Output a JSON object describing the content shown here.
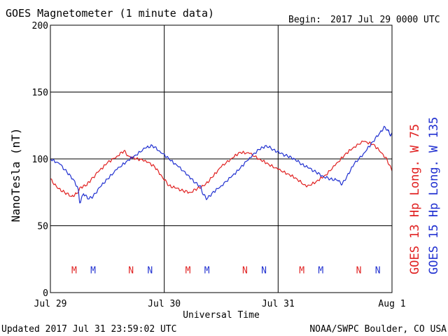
{
  "chart_data": {
    "type": "line",
    "title": "GOES Magnetometer (1 minute data)",
    "begin_label": "Begin:",
    "begin_value": "2017 Jul 29 0000 UTC",
    "xlabel": "Universal Time",
    "ylabel": "NanoTesla (nT)",
    "x_ticks": [
      "Jul 29",
      "Jul 30",
      "Jul 31",
      "Aug 1"
    ],
    "xlim_hours": [
      0,
      72
    ],
    "ylim": [
      0,
      200
    ],
    "y_ticks": [
      0,
      50,
      100,
      150,
      200
    ],
    "grid": true,
    "updated": "Updated 2017 Jul 31 23:59:02 UTC",
    "source": "NOAA/SWPC Boulder, CO USA",
    "colors": {
      "goes13": "#e02020",
      "goes15": "#2030d0"
    },
    "series": [
      {
        "name": "GOES 13 Hp",
        "legend_suffix": "Long. W 75",
        "color": "#e02020",
        "points": [
          [
            0,
            85
          ],
          [
            1.5,
            78
          ],
          [
            3,
            75
          ],
          [
            4.5,
            72
          ],
          [
            5.5,
            74
          ],
          [
            6.5,
            79
          ],
          [
            7.5,
            80
          ],
          [
            8.5,
            84
          ],
          [
            10,
            90
          ],
          [
            12,
            97
          ],
          [
            14,
            102
          ],
          [
            15.5,
            106
          ],
          [
            16.5,
            102
          ],
          [
            18,
            100
          ],
          [
            20,
            99
          ],
          [
            22,
            94
          ],
          [
            23.5,
            87
          ],
          [
            25,
            80
          ],
          [
            26.5,
            78
          ],
          [
            28,
            76
          ],
          [
            29.5,
            75
          ],
          [
            31,
            78
          ],
          [
            32.5,
            80
          ],
          [
            34,
            86
          ],
          [
            36,
            94
          ],
          [
            38,
            100
          ],
          [
            40,
            105
          ],
          [
            42,
            104
          ],
          [
            44,
            100
          ],
          [
            46,
            96
          ],
          [
            48,
            92
          ],
          [
            50,
            89
          ],
          [
            52,
            85
          ],
          [
            54,
            79
          ],
          [
            56,
            83
          ],
          [
            58,
            88
          ],
          [
            60,
            95
          ],
          [
            62,
            103
          ],
          [
            64,
            109
          ],
          [
            66,
            113
          ],
          [
            68,
            111
          ],
          [
            70,
            104
          ],
          [
            71,
            99
          ],
          [
            72,
            91
          ]
        ]
      },
      {
        "name": "GOES 15 Hp",
        "legend_suffix": "Long. W 135",
        "color": "#2030d0",
        "points": [
          [
            0,
            100
          ],
          [
            2,
            96
          ],
          [
            3.5,
            90
          ],
          [
            5,
            84
          ],
          [
            5.8,
            78
          ],
          [
            6.2,
            67
          ],
          [
            7,
            74
          ],
          [
            8,
            70
          ],
          [
            9,
            72
          ],
          [
            10.5,
            79
          ],
          [
            12,
            85
          ],
          [
            14,
            92
          ],
          [
            16,
            98
          ],
          [
            18,
            103
          ],
          [
            20,
            108
          ],
          [
            21.5,
            110
          ],
          [
            23,
            106
          ],
          [
            25,
            100
          ],
          [
            27,
            94
          ],
          [
            29,
            88
          ],
          [
            30.5,
            82
          ],
          [
            31.5,
            80
          ],
          [
            32.3,
            73
          ],
          [
            33,
            70
          ],
          [
            34,
            74
          ],
          [
            36,
            80
          ],
          [
            38,
            86
          ],
          [
            40,
            93
          ],
          [
            42,
            101
          ],
          [
            44,
            107
          ],
          [
            45.5,
            110
          ],
          [
            47,
            107
          ],
          [
            48.5,
            104
          ],
          [
            50,
            102
          ],
          [
            51.5,
            100
          ],
          [
            53,
            96
          ],
          [
            54.5,
            93
          ],
          [
            56,
            90
          ],
          [
            57.5,
            87
          ],
          [
            59,
            85
          ],
          [
            60.5,
            84
          ],
          [
            61.5,
            81
          ],
          [
            62.5,
            87
          ],
          [
            64,
            96
          ],
          [
            66,
            104
          ],
          [
            68,
            113
          ],
          [
            69.5,
            120
          ],
          [
            70.5,
            124
          ],
          [
            71.2,
            121
          ],
          [
            71.6,
            118
          ],
          [
            72,
            119
          ]
        ]
      }
    ],
    "markers": [
      {
        "label": "M",
        "color": "#e02020",
        "x": 5.0
      },
      {
        "label": "M",
        "color": "#2030d0",
        "x": 9.0
      },
      {
        "label": "N",
        "color": "#e02020",
        "x": 17.0
      },
      {
        "label": "N",
        "color": "#2030d0",
        "x": 21.0
      },
      {
        "label": "M",
        "color": "#e02020",
        "x": 29.0
      },
      {
        "label": "M",
        "color": "#2030d0",
        "x": 33.0
      },
      {
        "label": "N",
        "color": "#e02020",
        "x": 41.0
      },
      {
        "label": "N",
        "color": "#2030d0",
        "x": 45.0
      },
      {
        "label": "M",
        "color": "#e02020",
        "x": 53.0
      },
      {
        "label": "M",
        "color": "#2030d0",
        "x": 57.0
      },
      {
        "label": "N",
        "color": "#e02020",
        "x": 65.0
      },
      {
        "label": "N",
        "color": "#2030d0",
        "x": 69.0
      }
    ],
    "marker_y": 17
  }
}
